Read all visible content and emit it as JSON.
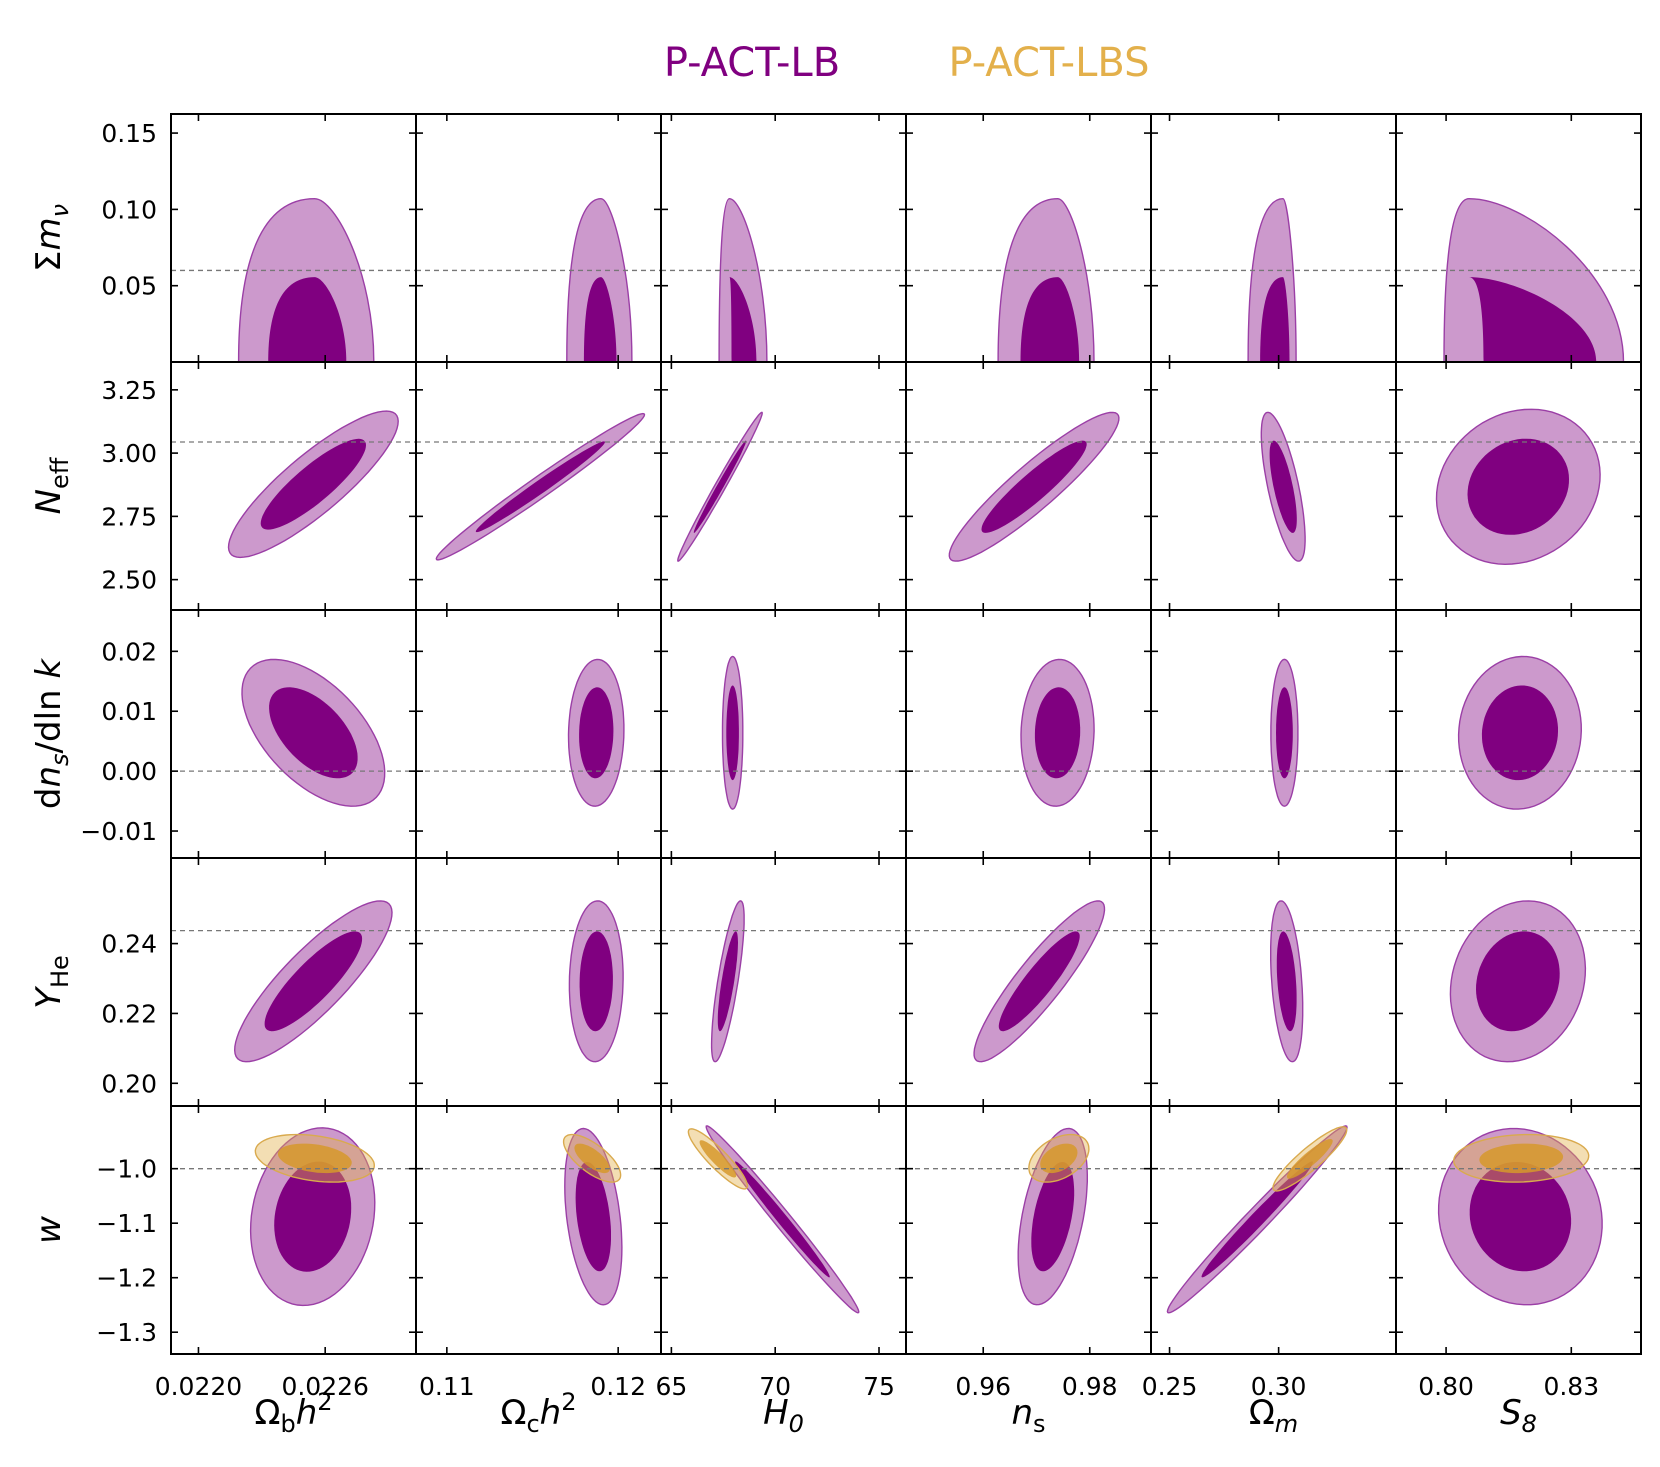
{
  "chart_data": {
    "type": "contour",
    "legend": {
      "placement": "top-center",
      "entries": [
        {
          "label": "P-ACT-LB",
          "color": "#800080"
        },
        {
          "label": "P-ACT-LBS",
          "color": "#E3B04B"
        }
      ]
    },
    "columns": [
      {
        "label": "Ω_bh^2",
        "range": [
          0.02187,
          0.02303
        ],
        "ticks": [
          0.022,
          0.0226
        ],
        "tick_labels": [
          "0.0220",
          "0.0226"
        ]
      },
      {
        "label": "Ω_ch^2",
        "range": [
          0.1082,
          0.1225
        ],
        "ticks": [
          0.11,
          0.12
        ],
        "tick_labels": [
          "0.11",
          "0.12"
        ]
      },
      {
        "label": "H_0",
        "range": [
          64.5,
          76.3
        ],
        "ticks": [
          65,
          70,
          75
        ],
        "tick_labels": [
          "65",
          "70",
          "75"
        ]
      },
      {
        "label": "n_s",
        "range": [
          0.9455,
          0.9915
        ],
        "ticks": [
          0.96,
          0.98
        ],
        "tick_labels": [
          "0.96",
          "0.98"
        ]
      },
      {
        "label": "Ω_m",
        "range": [
          0.2415,
          0.3538
        ],
        "ticks": [
          0.25,
          0.3
        ],
        "tick_labels": [
          "0.25",
          "0.30"
        ]
      },
      {
        "label": "S_8",
        "range": [
          0.788,
          0.8467
        ],
        "ticks": [
          0.8,
          0.83
        ],
        "tick_labels": [
          "0.80",
          "0.83"
        ]
      }
    ],
    "rows": [
      {
        "label": "Σm_ν",
        "range": [
          0.0,
          0.1625
        ],
        "ticks": [
          0.05,
          0.1,
          0.15
        ],
        "tick_labels": [
          "0.05",
          "0.10",
          "0.15"
        ],
        "reference": 0.06
      },
      {
        "label": "N_eff",
        "range": [
          2.38,
          3.36
        ],
        "ticks": [
          2.5,
          2.75,
          3.0,
          3.25
        ],
        "tick_labels": [
          "2.50",
          "2.75",
          "3.00",
          "3.25"
        ],
        "reference": 3.044
      },
      {
        "label": "dn_s/dln k",
        "range": [
          -0.0145,
          0.0269
        ],
        "ticks": [
          -0.01,
          0.0,
          0.01,
          0.02
        ],
        "tick_labels": [
          "−0.01",
          "0.00",
          "0.01",
          "0.02"
        ],
        "reference": 0.0
      },
      {
        "label": "Y_He",
        "range": [
          0.1935,
          0.2645
        ],
        "ticks": [
          0.2,
          0.22,
          0.24
        ],
        "tick_labels": [
          "0.20",
          "0.22",
          "0.24"
        ],
        "reference": 0.2437
      },
      {
        "label": "w",
        "range": [
          -1.34,
          -0.885
        ],
        "ticks": [
          -1.3,
          -1.2,
          -1.1,
          -1.0
        ],
        "tick_labels": [
          "−1.3",
          "−1.2",
          "−1.1",
          "−1.0"
        ],
        "reference": -1.0
      }
    ],
    "contours": [
      {
        "row": 0,
        "col": 0,
        "series": "P-ACT-LB",
        "shape": "cap",
        "lo": 0,
        "hi": 0.107,
        "base68": [
          0.02233,
          0.0227
        ],
        "base95": [
          0.02219,
          0.02283
        ],
        "peak": 0.02255
      },
      {
        "row": 0,
        "col": 1,
        "series": "P-ACT-LB",
        "shape": "cap",
        "lo": 0,
        "hi": 0.107,
        "base68": [
          0.118,
          0.1199
        ],
        "base95": [
          0.117,
          0.1208
        ],
        "peak": 0.119
      },
      {
        "row": 0,
        "col": 2,
        "series": "P-ACT-LB",
        "shape": "cap",
        "lo": 0,
        "hi": 0.107,
        "base68": [
          67.9,
          69.1
        ],
        "base95": [
          67.3,
          69.6
        ],
        "peak": 67.8
      },
      {
        "row": 0,
        "col": 3,
        "series": "P-ACT-LB",
        "shape": "cap",
        "lo": 0,
        "hi": 0.107,
        "base68": [
          0.967,
          0.978
        ],
        "base95": [
          0.9628,
          0.9808
        ],
        "peak": 0.974
      },
      {
        "row": 0,
        "col": 4,
        "series": "P-ACT-LB",
        "shape": "cap",
        "lo": 0,
        "hi": 0.107,
        "base68": [
          0.2915,
          0.305
        ],
        "base95": [
          0.286,
          0.308
        ],
        "peak": 0.302
      },
      {
        "row": 0,
        "col": 5,
        "series": "P-ACT-LB",
        "shape": "cap",
        "lo": 0,
        "hi": 0.107,
        "base68": [
          0.809,
          0.836
        ],
        "base95": [
          0.7995,
          0.8425
        ],
        "peak": 0.8055
      },
      {
        "row": 1,
        "col": 0,
        "series": "P-ACT-LB",
        "shape": "ellipse",
        "x": 0.022544,
        "y": 2.877,
        "sx": 0.000164,
        "sy": 0.118,
        "rho": 0.86
      },
      {
        "row": 1,
        "col": 1,
        "series": "P-ACT-LB",
        "shape": "ellipse",
        "x": 0.11546,
        "y": 2.867,
        "sx": 0.00248,
        "sy": 0.118,
        "rho": 0.985
      },
      {
        "row": 1,
        "col": 2,
        "series": "P-ACT-LB",
        "shape": "ellipse",
        "x": 67.34,
        "y": 2.867,
        "sx": 0.83,
        "sy": 0.12,
        "rho": 0.99
      },
      {
        "row": 1,
        "col": 3,
        "series": "P-ACT-LB",
        "shape": "ellipse",
        "x": 0.96955,
        "y": 2.867,
        "sx": 0.0065,
        "sy": 0.12,
        "rho": 0.92
      },
      {
        "row": 1,
        "col": 4,
        "series": "P-ACT-LB",
        "shape": "ellipse",
        "x": 0.3021,
        "y": 2.867,
        "sx": 0.0041,
        "sy": 0.12,
        "rho": -0.7
      },
      {
        "row": 1,
        "col": 5,
        "series": "P-ACT-LB",
        "shape": "ellipse",
        "x": 0.8173,
        "y": 2.867,
        "sx": 0.008,
        "sy": 0.125,
        "rho": 0.15
      },
      {
        "row": 2,
        "col": 0,
        "series": "P-ACT-LB",
        "shape": "ellipse",
        "x": 0.022544,
        "y": 0.0064,
        "sx": 0.000138,
        "sy": 0.005,
        "rho": -0.55
      },
      {
        "row": 2,
        "col": 1,
        "series": "P-ACT-LB",
        "shape": "ellipse",
        "x": 0.11872,
        "y": 0.0064,
        "sx": 0.00066,
        "sy": 0.005,
        "rho": 0.05
      },
      {
        "row": 2,
        "col": 2,
        "series": "P-ACT-LB",
        "shape": "ellipse",
        "x": 67.95,
        "y": 0.0064,
        "sx": 0.2,
        "sy": 0.0052,
        "rho": 0.0
      },
      {
        "row": 2,
        "col": 3,
        "series": "P-ACT-LB",
        "shape": "ellipse",
        "x": 0.97395,
        "y": 0.0064,
        "sx": 0.0028,
        "sy": 0.005,
        "rho": 0.05
      },
      {
        "row": 2,
        "col": 4,
        "series": "P-ACT-LB",
        "shape": "ellipse",
        "x": 0.30265,
        "y": 0.0064,
        "sx": 0.00253,
        "sy": 0.005,
        "rho": 0.0
      },
      {
        "row": 2,
        "col": 5,
        "series": "P-ACT-LB",
        "shape": "ellipse",
        "x": 0.8177,
        "y": 0.0064,
        "sx": 0.006,
        "sy": 0.0052,
        "rho": 0.05
      },
      {
        "row": 3,
        "col": 0,
        "series": "P-ACT-LB",
        "shape": "ellipse",
        "x": 0.022544,
        "y": 0.2292,
        "sx": 0.000152,
        "sy": 0.0094,
        "rho": 0.85
      },
      {
        "row": 3,
        "col": 1,
        "series": "P-ACT-LB",
        "shape": "ellipse",
        "x": 0.11872,
        "y": 0.2292,
        "sx": 0.00064,
        "sy": 0.0094,
        "rho": 0.05
      },
      {
        "row": 3,
        "col": 2,
        "series": "P-ACT-LB",
        "shape": "ellipse",
        "x": 67.72,
        "y": 0.2292,
        "sx": 0.32,
        "sy": 0.0094,
        "rho": 0.78
      },
      {
        "row": 3,
        "col": 3,
        "series": "P-ACT-LB",
        "shape": "ellipse",
        "x": 0.97052,
        "y": 0.2292,
        "sx": 0.005,
        "sy": 0.0094,
        "rho": 0.9
      },
      {
        "row": 3,
        "col": 4,
        "series": "P-ACT-LB",
        "shape": "ellipse",
        "x": 0.3037,
        "y": 0.2292,
        "sx": 0.003,
        "sy": 0.0094,
        "rho": -0.35
      },
      {
        "row": 3,
        "col": 5,
        "series": "P-ACT-LB",
        "shape": "ellipse",
        "x": 0.8172,
        "y": 0.2292,
        "sx": 0.0066,
        "sy": 0.0094,
        "rho": 0.15
      },
      {
        "row": 4,
        "col": 0,
        "series": "P-ACT-LB",
        "shape": "ellipse",
        "x": 0.022541,
        "y": -1.088,
        "sx": 0.00012,
        "sy": 0.0665,
        "rho": 0.15
      },
      {
        "row": 4,
        "col": 1,
        "series": "P-ACT-LB",
        "shape": "ellipse",
        "x": 0.11855,
        "y": -1.088,
        "sx": 0.00068,
        "sy": 0.066,
        "rho": -0.35
      },
      {
        "row": 4,
        "col": 2,
        "series": "P-ACT-LB",
        "shape": "ellipse",
        "x": 70.35,
        "y": -1.093,
        "sx": 1.5,
        "sy": 0.07,
        "rho": -0.99
      },
      {
        "row": 4,
        "col": 3,
        "series": "P-ACT-LB",
        "shape": "ellipse",
        "x": 0.97305,
        "y": -1.088,
        "sx": 0.00265,
        "sy": 0.066,
        "rho": 0.45
      },
      {
        "row": 4,
        "col": 4,
        "series": "P-ACT-LB",
        "shape": "ellipse",
        "x": 0.2902,
        "y": -1.093,
        "sx": 0.0168,
        "sy": 0.07,
        "rho": 0.985
      },
      {
        "row": 4,
        "col": 5,
        "series": "P-ACT-LB",
        "shape": "ellipse",
        "x": 0.8178,
        "y": -1.088,
        "sx": 0.008,
        "sy": 0.066,
        "rho": -0.08
      },
      {
        "row": 4,
        "col": 0,
        "series": "P-ACT-LBS",
        "shape": "ellipse",
        "x": 0.022551,
        "y": -0.981,
        "sx": 0.000115,
        "sy": 0.0178,
        "rho": -0.3
      },
      {
        "row": 4,
        "col": 1,
        "series": "P-ACT-LBS",
        "shape": "ellipse",
        "x": 0.11848,
        "y": -0.981,
        "sx": 0.00068,
        "sy": 0.0178,
        "rho": -0.7
      },
      {
        "row": 4,
        "col": 2,
        "series": "P-ACT-LBS",
        "shape": "ellipse",
        "x": 67.24,
        "y": -0.982,
        "sx": 0.58,
        "sy": 0.0225,
        "rho": -0.9
      },
      {
        "row": 4,
        "col": 3,
        "series": "P-ACT-LBS",
        "shape": "ellipse",
        "x": 0.9742,
        "y": -0.981,
        "sx": 0.0023,
        "sy": 0.0178,
        "rho": 0.4
      },
      {
        "row": 4,
        "col": 4,
        "series": "P-ACT-LBS",
        "shape": "ellipse",
        "x": 0.3143,
        "y": -0.982,
        "sx": 0.0069,
        "sy": 0.024,
        "rho": 0.9
      },
      {
        "row": 4,
        "col": 5,
        "series": "P-ACT-LBS",
        "shape": "ellipse",
        "x": 0.818,
        "y": -0.981,
        "sx": 0.0066,
        "sy": 0.0178,
        "rho": 0.1
      }
    ]
  }
}
